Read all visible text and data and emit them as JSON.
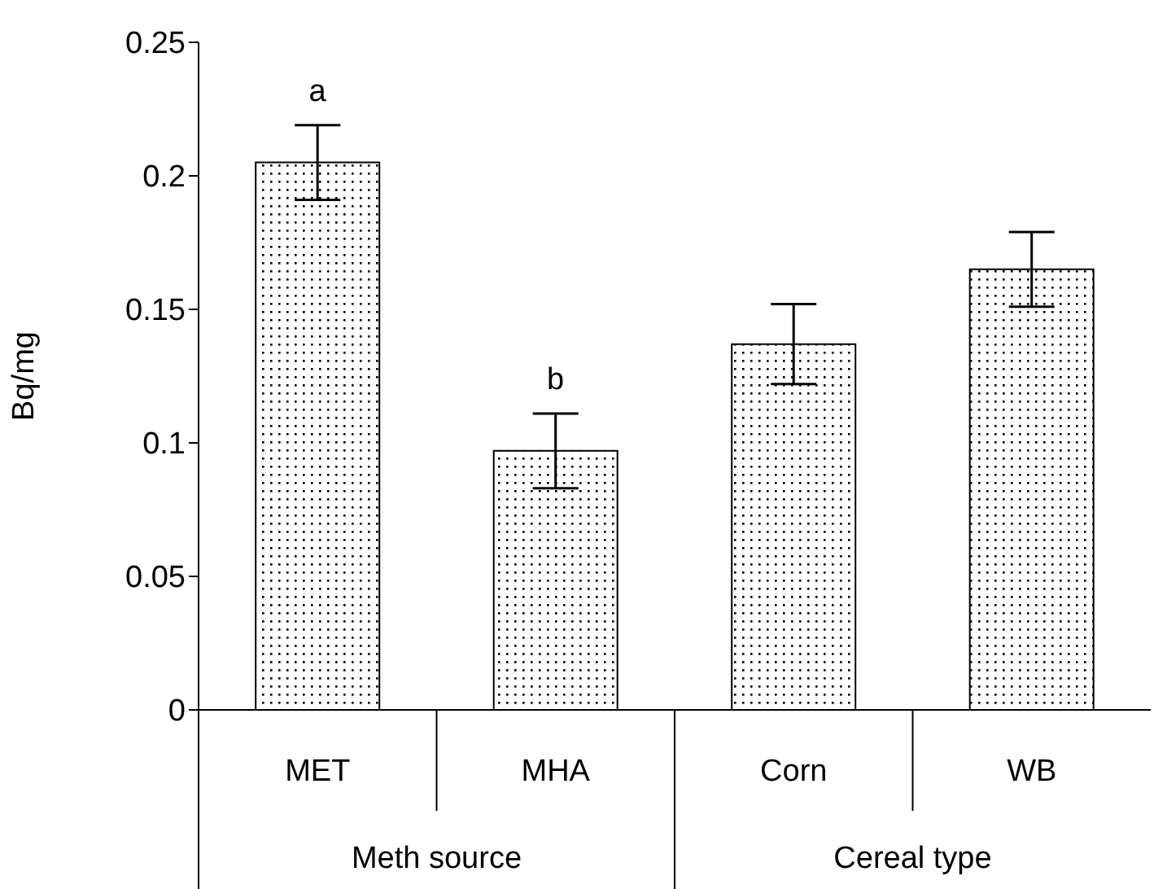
{
  "chart_data": {
    "type": "bar",
    "ylabel": "Bq/mg",
    "categories": [
      "MET",
      "MHA",
      "Corn",
      "WB"
    ],
    "values": [
      0.205,
      0.097,
      0.137,
      0.165
    ],
    "errors": [
      0.014,
      0.014,
      0.015,
      0.014
    ],
    "value_labels": [
      "a",
      "b",
      null,
      null
    ],
    "color": "#000000",
    "ylim": [
      0,
      0.25
    ],
    "yticks": [
      0,
      0.05,
      0.1,
      0.15,
      0.2,
      0.25
    ],
    "annotations": [
      "Meth source",
      "Cereal type"
    ],
    "grid": false,
    "legend": false
  }
}
